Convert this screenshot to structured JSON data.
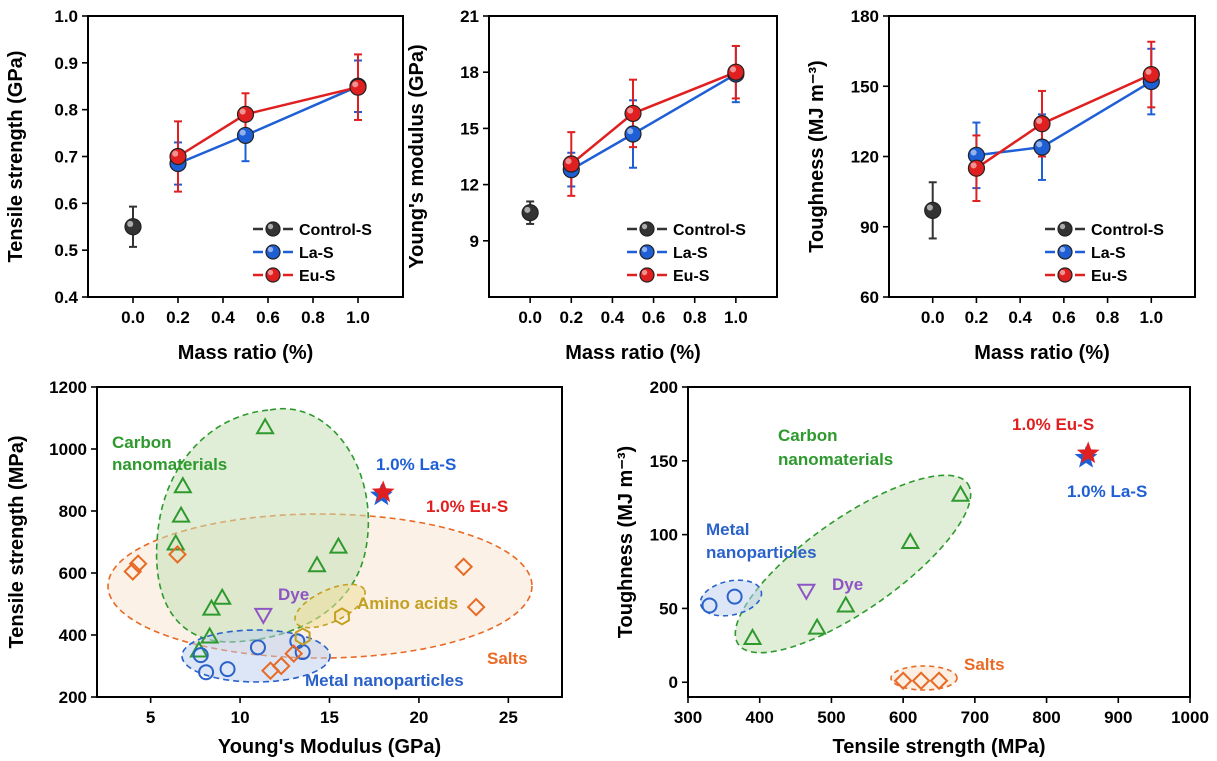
{
  "chart_data": [
    {
      "type": "line",
      "ylabel": "Tensile strength (GPa)",
      "xlabel": "Mass ratio (%)",
      "xlim": [
        -0.2,
        1.2
      ],
      "ylim": [
        0.4,
        1.0
      ],
      "x_ticks": [
        "0.0",
        "0.2",
        "0.4",
        "0.6",
        "0.8",
        "1.0"
      ],
      "y_ticks": [
        "0.4",
        "0.5",
        "0.6",
        "0.7",
        "0.8",
        "0.9",
        "1.0"
      ],
      "legend_position": "bottom-right",
      "series": [
        {
          "name": "Control-S",
          "color": "#333333",
          "x": [
            0.0
          ],
          "y": [
            0.55
          ],
          "err": [
            0.043
          ]
        },
        {
          "name": "La-S",
          "color": "#1f5fd6",
          "x": [
            0.2,
            0.5,
            1.0
          ],
          "y": [
            0.685,
            0.745,
            0.85
          ],
          "err": [
            0.045,
            0.055,
            0.055
          ]
        },
        {
          "name": "Eu-S",
          "color": "#e02020",
          "x": [
            0.2,
            0.5,
            1.0
          ],
          "y": [
            0.7,
            0.79,
            0.848
          ],
          "err": [
            0.075,
            0.045,
            0.07
          ]
        }
      ]
    },
    {
      "type": "line",
      "ylabel": "Young's modulus (GPa)",
      "xlabel": "Mass ratio (%)",
      "xlim": [
        -0.2,
        1.2
      ],
      "ylim": [
        6,
        21
      ],
      "x_ticks": [
        "0.0",
        "0.2",
        "0.4",
        "0.6",
        "0.8",
        "1.0"
      ],
      "y_ticks": [
        "9",
        "12",
        "15",
        "18",
        "21"
      ],
      "legend_position": "bottom-right",
      "series": [
        {
          "name": "Control-S",
          "color": "#333333",
          "x": [
            0.0
          ],
          "y": [
            10.5
          ],
          "err": [
            0.6
          ]
        },
        {
          "name": "La-S",
          "color": "#1f5fd6",
          "x": [
            0.2,
            0.5,
            1.0
          ],
          "y": [
            12.8,
            14.7,
            17.9
          ],
          "err": [
            0.9,
            1.8,
            1.5
          ]
        },
        {
          "name": "Eu-S",
          "color": "#e02020",
          "x": [
            0.2,
            0.5,
            1.0
          ],
          "y": [
            13.1,
            15.8,
            18.0
          ],
          "err": [
            1.7,
            1.8,
            1.4
          ]
        }
      ]
    },
    {
      "type": "line",
      "ylabel": "Toughness (MJ m⁻³)",
      "xlabel": "Mass ratio (%)",
      "xlim": [
        -0.2,
        1.2
      ],
      "ylim": [
        60,
        180
      ],
      "x_ticks": [
        "0.0",
        "0.2",
        "0.4",
        "0.6",
        "0.8",
        "1.0"
      ],
      "y_ticks": [
        "60",
        "90",
        "120",
        "150",
        "180"
      ],
      "legend_position": "bottom-right",
      "series": [
        {
          "name": "Control-S",
          "color": "#333333",
          "x": [
            0.0
          ],
          "y": [
            97
          ],
          "err": [
            12
          ]
        },
        {
          "name": "La-S",
          "color": "#1f5fd6",
          "x": [
            0.2,
            0.5,
            1.0
          ],
          "y": [
            120.5,
            124,
            152
          ],
          "err": [
            14,
            14,
            14
          ]
        },
        {
          "name": "Eu-S",
          "color": "#e02020",
          "x": [
            0.2,
            0.5,
            1.0
          ],
          "y": [
            115,
            134,
            155
          ],
          "err": [
            14,
            14,
            14
          ]
        }
      ]
    },
    {
      "type": "scatter",
      "ylabel": "Tensile strength (MPa)",
      "xlabel": "Young's Modulus (GPa)",
      "xlim": [
        2,
        28
      ],
      "ylim": [
        200,
        1200
      ],
      "x_ticks": [
        "5",
        "10",
        "15",
        "20",
        "25"
      ],
      "y_ticks": [
        "200",
        "400",
        "600",
        "800",
        "1000",
        "1200"
      ],
      "groups": [
        {
          "name": "Carbon nanomaterials",
          "marker": "triangle",
          "color": "#2e9a2e",
          "points": [
            [
              11.4,
              1070
            ],
            [
              6.8,
              880
            ],
            [
              6.7,
              785
            ],
            [
              6.4,
              695
            ],
            [
              15.5,
              685
            ],
            [
              14.3,
              625
            ],
            [
              9.0,
              520
            ],
            [
              8.4,
              485
            ],
            [
              8.3,
              395
            ],
            [
              7.7,
              350
            ]
          ]
        },
        {
          "name": "Metal nanoparticles",
          "marker": "circle",
          "color": "#2a62c9",
          "points": [
            [
              7.8,
              335
            ],
            [
              8.1,
              280
            ],
            [
              9.3,
              290
            ],
            [
              11.0,
              360
            ],
            [
              13.5,
              345
            ],
            [
              13.2,
              380
            ]
          ]
        },
        {
          "name": "Dye",
          "marker": "triangle-down",
          "color": "#8e55c4",
          "points": [
            [
              11.3,
              465
            ]
          ]
        },
        {
          "name": "Amino acids",
          "marker": "hexagon",
          "color": "#c3a020",
          "points": [
            [
              13.5,
              395
            ],
            [
              15.7,
              460
            ]
          ]
        },
        {
          "name": "Salts",
          "marker": "diamond",
          "color": "#e86a25",
          "points": [
            [
              4.3,
              630
            ],
            [
              4.0,
              605
            ],
            [
              6.5,
              660
            ],
            [
              11.7,
              285
            ],
            [
              12.3,
              300
            ],
            [
              13.0,
              340
            ],
            [
              22.5,
              620
            ],
            [
              23.2,
              490
            ]
          ]
        }
      ],
      "highlights": [
        {
          "label": "1.0% La-S",
          "color": "#1f5fd6",
          "x": 17.9,
          "y": 850
        },
        {
          "label": "1.0% Eu-S",
          "color": "#e02020",
          "x": 18.0,
          "y": 860
        }
      ]
    },
    {
      "type": "scatter",
      "ylabel": "Toughness (MJ m⁻³)",
      "xlabel": "Tensile strength (MPa)",
      "xlim": [
        300,
        1000
      ],
      "ylim": [
        -10,
        200
      ],
      "x_ticks": [
        "300",
        "400",
        "500",
        "600",
        "700",
        "800",
        "900",
        "1000"
      ],
      "y_ticks": [
        "0",
        "50",
        "100",
        "150",
        "200"
      ],
      "groups": [
        {
          "name": "Carbon nanomaterials",
          "marker": "triangle",
          "color": "#2e9a2e",
          "points": [
            [
              390,
              30
            ],
            [
              480,
              37
            ],
            [
              520,
              52
            ],
            [
              610,
              95
            ],
            [
              680,
              127
            ]
          ]
        },
        {
          "name": "Metal nanoparticles",
          "marker": "circle",
          "color": "#2a62c9",
          "points": [
            [
              330,
              52
            ],
            [
              365,
              58
            ]
          ]
        },
        {
          "name": "Dye",
          "marker": "triangle-down",
          "color": "#8e55c4",
          "points": [
            [
              465,
              62
            ]
          ]
        },
        {
          "name": "Salts",
          "marker": "diamond",
          "color": "#e86a25",
          "points": [
            [
              600,
              1
            ],
            [
              625,
              1
            ],
            [
              650,
              1
            ]
          ]
        }
      ],
      "highlights": [
        {
          "label": "1.0% La-S",
          "color": "#1f5fd6",
          "x": 855,
          "y": 152
        },
        {
          "label": "1.0% Eu-S",
          "color": "#e02020",
          "x": 858,
          "y": 155
        }
      ]
    }
  ]
}
